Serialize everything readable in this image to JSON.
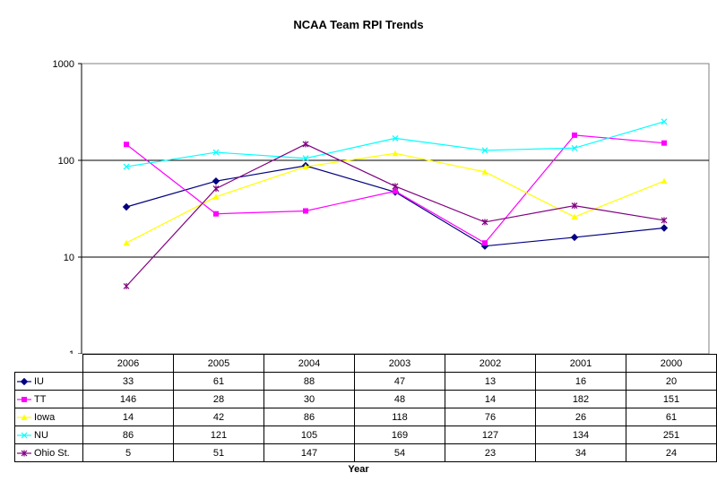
{
  "chart_data": {
    "type": "line",
    "title": "NCAA Team RPI Trends",
    "xlabel": "Year",
    "ylabel": "",
    "yscale": "log",
    "ylim": [
      1,
      1000
    ],
    "y_ticks": [
      "1",
      "10",
      "100",
      "1000"
    ],
    "grid": "horizontal major gridlines",
    "legend": "in data table",
    "categories": [
      "2006",
      "2005",
      "2004",
      "2003",
      "2002",
      "2001",
      "2000"
    ],
    "series": [
      {
        "name": "IU",
        "color": "#000080",
        "marker": "diamond",
        "values": [
          33,
          61,
          88,
          47,
          13,
          16,
          20
        ]
      },
      {
        "name": "TT",
        "color": "#FF00FF",
        "marker": "square",
        "values": [
          146,
          28,
          30,
          48,
          14,
          182,
          151
        ]
      },
      {
        "name": "Iowa",
        "color": "#FFFF00",
        "marker": "triangle",
        "values": [
          14,
          42,
          86,
          118,
          76,
          26,
          61
        ]
      },
      {
        "name": "NU",
        "color": "#00FFFF",
        "marker": "x",
        "values": [
          86,
          121,
          105,
          169,
          127,
          134,
          251
        ]
      },
      {
        "name": "Ohio St.",
        "color": "#800080",
        "marker": "star",
        "values": [
          5,
          51,
          147,
          54,
          23,
          34,
          24
        ]
      }
    ]
  }
}
